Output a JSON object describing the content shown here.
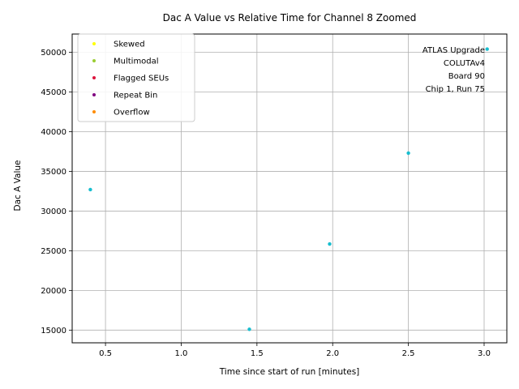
{
  "chart_data": {
    "type": "scatter",
    "title": "Dac A Value vs Relative Time for Channel 8 Zoomed",
    "xlabel": "Time since start of run [minutes]",
    "ylabel": "Dac A Value",
    "xlim": [
      0.28,
      3.15
    ],
    "ylim": [
      13400,
      52300
    ],
    "xticks": [
      0.5,
      1.0,
      1.5,
      2.0,
      2.5,
      3.0
    ],
    "xtick_labels": [
      "0.5",
      "1.0",
      "1.5",
      "2.0",
      "2.5",
      "3.0"
    ],
    "yticks": [
      15000,
      20000,
      25000,
      30000,
      35000,
      40000,
      45000,
      50000
    ],
    "ytick_labels": [
      "15000",
      "20000",
      "25000",
      "30000",
      "35000",
      "40000",
      "45000",
      "50000"
    ],
    "grid": true,
    "point_color": "#17becf",
    "points": [
      {
        "x": 0.4,
        "y": 32700
      },
      {
        "x": 1.45,
        "y": 15100
      },
      {
        "x": 1.98,
        "y": 25850
      },
      {
        "x": 2.5,
        "y": 37300
      },
      {
        "x": 3.02,
        "y": 50400
      }
    ],
    "legend": {
      "placement": "top-left",
      "entries": [
        {
          "label": "Skewed",
          "color": "#ffff00"
        },
        {
          "label": "Multimodal",
          "color": "#9acd32"
        },
        {
          "label": "Flagged SEUs",
          "color": "#dc143c"
        },
        {
          "label": "Repeat Bin",
          "color": "#800080"
        },
        {
          "label": "Overflow",
          "color": "#ff8c00"
        }
      ]
    },
    "annotation": {
      "placement": "top-right",
      "lines": [
        "ATLAS Upgrade",
        "COLUTAv4",
        "Board 90",
        "Chip 1, Run 75"
      ]
    }
  }
}
